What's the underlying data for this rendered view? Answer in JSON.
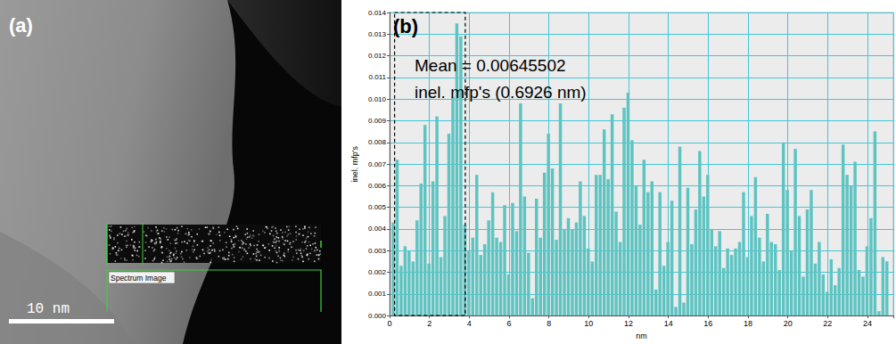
{
  "panel_a": {
    "label": "(a)",
    "scale_bar": "10 nm",
    "inset_label": "Spectrum Image"
  },
  "chart_data": {
    "type": "histogram",
    "panel_label": "(b)",
    "annotations": [
      "Mean = 0.00645502",
      "inel. mfp's (0.6926 nm)"
    ],
    "x_label": "nm",
    "y_label": "inel. mfp's",
    "bins": [
      0.1,
      0.3,
      0.5,
      0.7,
      0.9,
      1.1,
      1.3,
      1.5,
      1.7,
      1.9,
      2.1,
      2.3,
      2.5,
      2.7,
      2.9,
      3.1,
      3.3,
      3.5,
      3.7,
      3.9,
      4.1,
      4.3,
      4.5,
      4.7,
      4.9,
      5.1,
      5.3,
      5.5,
      5.7,
      5.9,
      6.1,
      6.3,
      6.5,
      6.7,
      6.9,
      7.1,
      7.3,
      7.5,
      7.7,
      7.9,
      8.1,
      8.3,
      8.5,
      8.7,
      8.9,
      9.1,
      9.3,
      9.5,
      9.7,
      9.9,
      10.1,
      10.3,
      10.5,
      10.7,
      10.9,
      11.1,
      11.3,
      11.5,
      11.7,
      11.9,
      12.1,
      12.3,
      12.5,
      12.7,
      12.9,
      13.1,
      13.3,
      13.5,
      13.7,
      13.9,
      14.1,
      14.3,
      14.5,
      14.7,
      14.9,
      15.1,
      15.3,
      15.5,
      15.7,
      15.9,
      16.1,
      16.3,
      16.5,
      16.7,
      16.9,
      17.1,
      17.3,
      17.5,
      17.7,
      17.9,
      18.1,
      18.3,
      18.5,
      18.7,
      18.9,
      19.1,
      19.3,
      19.5,
      19.7,
      19.9,
      20.1,
      20.3,
      20.5,
      20.7,
      20.9,
      21.1,
      21.3,
      21.5,
      21.7,
      21.9,
      22.1,
      22.3,
      22.5,
      22.7,
      22.9,
      23.1,
      23.3,
      23.5,
      23.7,
      23.9,
      24.1,
      24.3,
      24.5,
      24.7,
      24.9,
      25.1
    ],
    "values": [
      0.0043,
      0.0072,
      0.0023,
      0.0032,
      0.003,
      0.0025,
      0.0044,
      0.0061,
      0.0088,
      0.0024,
      0.0062,
      0.0092,
      0.0027,
      0.0046,
      0.0084,
      0.0101,
      0.0135,
      0.0129,
      0.0042,
      0.003,
      0.0036,
      0.0065,
      0.0028,
      0.0033,
      0.0044,
      0.0057,
      0.0036,
      0.0034,
      0.0051,
      0.0019,
      0.0052,
      0.0039,
      0.0098,
      0.0055,
      0.0029,
      0.0008,
      0.0054,
      0.0036,
      0.0066,
      0.0084,
      0.0068,
      0.0035,
      0.0098,
      0.004,
      0.0045,
      0.004,
      0.0043,
      0.0062,
      0.0046,
      0.0031,
      0.0025,
      0.0065,
      0.0065,
      0.0086,
      0.0063,
      0.0093,
      0.0048,
      0.0034,
      0.0096,
      0.0103,
      0.0081,
      0.006,
      0.0042,
      0.0072,
      0.0057,
      0.0062,
      0.0012,
      0.0057,
      0.0023,
      0.0034,
      0.0053,
      0.0004,
      0.0078,
      0.0006,
      0.0059,
      0.0033,
      0.0049,
      0.0076,
      0.0055,
      0.0065,
      0.004,
      0.0032,
      0.0039,
      0.0022,
      0.0031,
      0.0028,
      0.0031,
      0.0034,
      0.0057,
      0.0027,
      0.0046,
      0.0064,
      0.0036,
      0.0025,
      0.0047,
      0.0034,
      0.0033,
      0.0021,
      0.008,
      0.0058,
      0.003,
      0.0077,
      0.0046,
      0.0018,
      0.0049,
      0.0058,
      0.0024,
      0.0034,
      0.0019,
      0.0011,
      0.0026,
      0.0014,
      0.0022,
      0.0079,
      0.0065,
      0.006,
      0.0071,
      0.0021,
      0.0018,
      0.0032,
      0.0045,
      0.0085,
      0.0002,
      0.0027,
      0.0025
    ],
    "color": "#5ec4c2",
    "xlim": [
      0,
      25.3
    ],
    "xticks": [
      0,
      2,
      4,
      6,
      8,
      10,
      12,
      14,
      16,
      18,
      20,
      22,
      24
    ],
    "ylim": [
      0,
      0.014
    ],
    "yticks": [
      {
        "value": 0,
        "label": "0.000"
      },
      {
        "value": 0.001,
        "label": "0.001"
      },
      {
        "value": 0.002,
        "label": "0.002"
      },
      {
        "value": 0.003,
        "label": "0.003"
      },
      {
        "value": 0.004,
        "label": "0.004"
      },
      {
        "value": 0.005,
        "label": "0.005"
      },
      {
        "value": 0.006,
        "label": "0.006"
      },
      {
        "value": 0.007,
        "label": "0.007"
      },
      {
        "value": 0.008,
        "label": "0.008"
      },
      {
        "value": 0.009,
        "label": "0.009"
      },
      {
        "value": 0.01,
        "label": "0.010"
      },
      {
        "value": 0.011,
        "label": "0.011"
      },
      {
        "value": 0.012,
        "label": "0.012"
      },
      {
        "value": 0.013,
        "label": "0.013"
      },
      {
        "value": 0.014,
        "label": "0.014"
      }
    ],
    "grid": true,
    "highlight": [
      0.25,
      3.8
    ]
  }
}
